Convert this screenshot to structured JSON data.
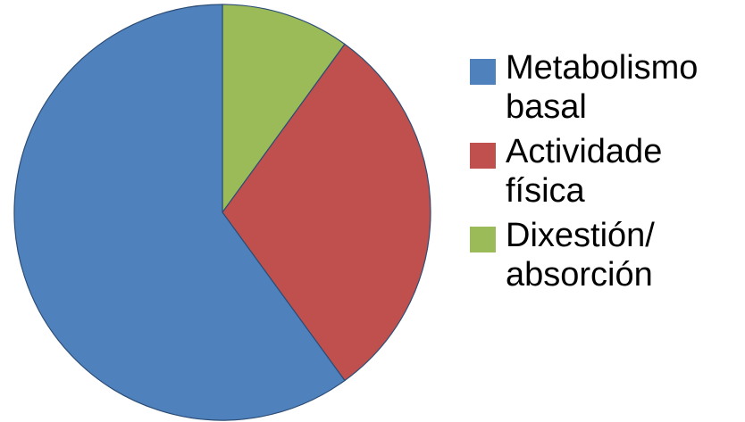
{
  "chart_data": {
    "type": "pie",
    "title": "",
    "start_angle_deg": 0,
    "direction": "clockwise",
    "slices": [
      {
        "label": "Metabolismo\nbasal",
        "value": 60,
        "color": "#4F81BD",
        "legend_line1": "Metabolismo",
        "legend_line2": "basal"
      },
      {
        "label": "Actividade\nfísica",
        "value": 30,
        "color": "#C0504D",
        "legend_line1": "Actividade",
        "legend_line2": "física"
      },
      {
        "label": "Dixestión/\nabsorción",
        "value": 10,
        "color": "#9BBB59",
        "legend_line1": "Dixestión/",
        "legend_line2": "absorción"
      }
    ],
    "legend_position": "right",
    "slice_border_color": "#2c4d75"
  }
}
